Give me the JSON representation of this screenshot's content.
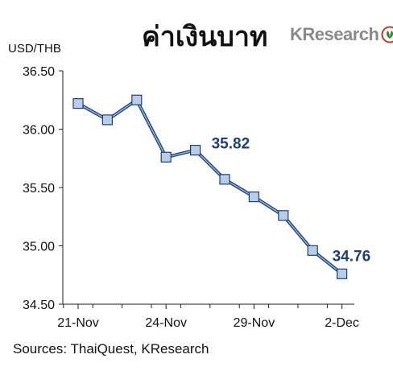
{
  "header": {
    "title": "ค่าเงินบาท",
    "logo_text": "KResearch"
  },
  "footer": {
    "source": "Sources: ThaiQuest, KResearch"
  },
  "colors": {
    "line": "#1f3f73",
    "line_inner": "#8fb3e0",
    "marker_fill": "#b8cde8",
    "marker_stroke": "#1f3f73",
    "label": "#1f3f73",
    "logo_green": "#2e8b2e",
    "logo_red": "#c0392b"
  },
  "chart_data": {
    "type": "line",
    "title": "ค่าเงินบาท",
    "ylabel": "USD/THB",
    "xlabel": "",
    "ylim": [
      34.5,
      36.5
    ],
    "yticks": [
      "34.50",
      "35.00",
      "35.50",
      "36.00",
      "36.50"
    ],
    "x_tick_labels": [
      {
        "index": 0,
        "label": "21-Nov"
      },
      {
        "index": 3,
        "label": "24-Nov"
      },
      {
        "index": 6,
        "label": "29-Nov"
      },
      {
        "index": 9,
        "label": "2-Dec"
      }
    ],
    "grid": false,
    "series": [
      {
        "values": [
          36.22,
          36.08,
          36.25,
          35.76,
          35.82,
          35.57,
          35.42,
          35.26,
          34.96,
          34.76
        ]
      }
    ],
    "data_labels": [
      {
        "index": 4,
        "text": "35.82"
      },
      {
        "index": 9,
        "text": "34.76"
      }
    ]
  }
}
